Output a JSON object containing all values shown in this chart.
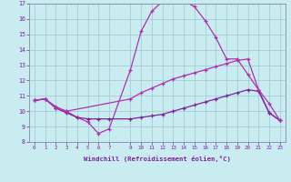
{
  "xlabel": "Windchill (Refroidissement éolien,°C)",
  "ylabel": "",
  "bg_color": "#c8ecf0",
  "grid_color": "#a8ccd8",
  "line_color1": "#b030b0",
  "line_color2": "#8020a0",
  "xlim": [
    -0.5,
    23.5
  ],
  "ylim": [
    8,
    17
  ],
  "xticks": [
    0,
    1,
    2,
    3,
    4,
    5,
    6,
    7,
    9,
    10,
    11,
    12,
    13,
    14,
    15,
    16,
    17,
    18,
    19,
    20,
    21,
    22,
    23
  ],
  "yticks": [
    8,
    9,
    10,
    11,
    12,
    13,
    14,
    15,
    16,
    17
  ],
  "line1_x": [
    0,
    1,
    2,
    3,
    4,
    5,
    6,
    7,
    9,
    10,
    11,
    12,
    13,
    14,
    15,
    16,
    17,
    18,
    19,
    20,
    21,
    22,
    23
  ],
  "line1_y": [
    10.7,
    10.8,
    10.3,
    10.0,
    9.6,
    9.3,
    8.55,
    8.85,
    12.7,
    15.2,
    16.5,
    17.15,
    17.2,
    17.2,
    16.8,
    15.9,
    14.8,
    13.4,
    13.4,
    12.4,
    11.4,
    9.9,
    9.4
  ],
  "line2_x": [
    0,
    1,
    2,
    3,
    4,
    5,
    6,
    7,
    9,
    10,
    11,
    12,
    13,
    14,
    15,
    16,
    17,
    18,
    19,
    20,
    21,
    22,
    23
  ],
  "line2_y": [
    10.7,
    10.8,
    10.2,
    9.9,
    9.6,
    9.5,
    9.5,
    9.5,
    9.5,
    9.6,
    9.7,
    9.8,
    10.0,
    10.2,
    10.4,
    10.6,
    10.8,
    11.0,
    11.2,
    11.4,
    11.3,
    9.9,
    9.4
  ],
  "line3_x": [
    0,
    1,
    2,
    3,
    9,
    10,
    11,
    12,
    13,
    14,
    15,
    16,
    17,
    18,
    19,
    20,
    21,
    22,
    23
  ],
  "line3_y": [
    10.7,
    10.8,
    10.2,
    10.0,
    10.8,
    11.2,
    11.5,
    11.8,
    12.1,
    12.3,
    12.5,
    12.7,
    12.9,
    13.1,
    13.3,
    13.4,
    11.4,
    10.5,
    9.4
  ]
}
